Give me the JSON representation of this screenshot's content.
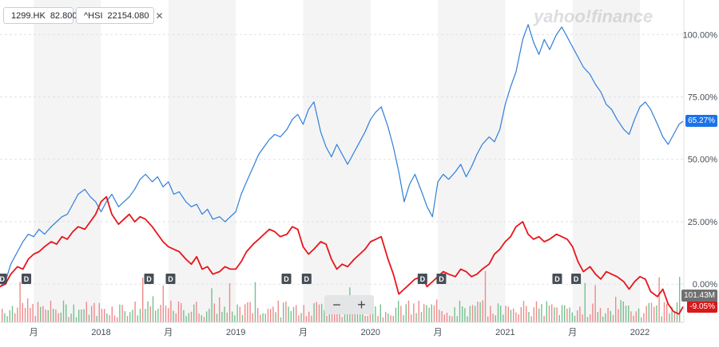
{
  "legend": {
    "items": [
      {
        "ticker": "1299.HK",
        "value": "82.800",
        "color": "#1a73e8",
        "removable": false
      },
      {
        "ticker": "^HSI",
        "value": "22154.080",
        "color": "#d7191c",
        "removable": true
      }
    ]
  },
  "brand": "yahoo!finance",
  "zoom": {
    "minus": "−",
    "plus": "+"
  },
  "chart_data": {
    "type": "line",
    "colors": {
      "series1": "#2f7ed8",
      "series2": "#e8151b",
      "vol_up": "#76c08e",
      "vol_down": "#ef8a8a",
      "band": "#f4f4f5"
    },
    "x_tick_labels": [
      "月",
      "2018",
      "月",
      "2019",
      "月",
      "2020",
      "月",
      "2021",
      "月",
      "2022"
    ],
    "x_ticks_years": [
      2017.5,
      2018.0,
      2018.5,
      2019.0,
      2019.5,
      2020.0,
      2020.5,
      2021.0,
      2021.5,
      2022.0
    ],
    "x_range": [
      2017.25,
      2022.32
    ],
    "y_ticks": [
      "100.00%",
      "75.00%",
      "50.00%",
      "25.00%",
      "0.00%"
    ],
    "y_tick_values": [
      100,
      75,
      50,
      25,
      0
    ],
    "y_range": [
      -14,
      110
    ],
    "series": [
      {
        "ticker": "1299.HK",
        "points": [
          [
            2017.25,
            -1
          ],
          [
            2017.29,
            1
          ],
          [
            2017.33,
            8
          ],
          [
            2017.38,
            13
          ],
          [
            2017.42,
            17
          ],
          [
            2017.46,
            20
          ],
          [
            2017.5,
            19
          ],
          [
            2017.54,
            22
          ],
          [
            2017.58,
            20
          ],
          [
            2017.63,
            23
          ],
          [
            2017.67,
            25
          ],
          [
            2017.71,
            27
          ],
          [
            2017.75,
            28
          ],
          [
            2017.79,
            32
          ],
          [
            2017.83,
            36
          ],
          [
            2017.88,
            38
          ],
          [
            2017.92,
            35
          ],
          [
            2017.96,
            33
          ],
          [
            2018.0,
            29
          ],
          [
            2018.04,
            33
          ],
          [
            2018.08,
            36
          ],
          [
            2018.13,
            31
          ],
          [
            2018.17,
            33
          ],
          [
            2018.21,
            35
          ],
          [
            2018.25,
            38
          ],
          [
            2018.29,
            42
          ],
          [
            2018.33,
            44
          ],
          [
            2018.38,
            41
          ],
          [
            2018.42,
            43
          ],
          [
            2018.46,
            39
          ],
          [
            2018.5,
            41
          ],
          [
            2018.54,
            36
          ],
          [
            2018.58,
            37
          ],
          [
            2018.63,
            33
          ],
          [
            2018.67,
            31
          ],
          [
            2018.71,
            32
          ],
          [
            2018.75,
            28
          ],
          [
            2018.79,
            30
          ],
          [
            2018.83,
            26
          ],
          [
            2018.88,
            27
          ],
          [
            2018.92,
            25
          ],
          [
            2018.96,
            27
          ],
          [
            2019.0,
            29
          ],
          [
            2019.04,
            36
          ],
          [
            2019.08,
            41
          ],
          [
            2019.13,
            47
          ],
          [
            2019.17,
            52
          ],
          [
            2019.21,
            55
          ],
          [
            2019.25,
            58
          ],
          [
            2019.29,
            60
          ],
          [
            2019.33,
            59
          ],
          [
            2019.38,
            62
          ],
          [
            2019.42,
            66
          ],
          [
            2019.46,
            68
          ],
          [
            2019.5,
            64
          ],
          [
            2019.54,
            70
          ],
          [
            2019.58,
            73
          ],
          [
            2019.63,
            61
          ],
          [
            2019.67,
            55
          ],
          [
            2019.71,
            51
          ],
          [
            2019.75,
            56
          ],
          [
            2019.79,
            52
          ],
          [
            2019.83,
            48
          ],
          [
            2019.88,
            53
          ],
          [
            2019.92,
            57
          ],
          [
            2019.96,
            61
          ],
          [
            2020.0,
            66
          ],
          [
            2020.04,
            69
          ],
          [
            2020.08,
            71
          ],
          [
            2020.13,
            63
          ],
          [
            2020.17,
            55
          ],
          [
            2020.21,
            45
          ],
          [
            2020.25,
            33
          ],
          [
            2020.29,
            40
          ],
          [
            2020.33,
            44
          ],
          [
            2020.38,
            37
          ],
          [
            2020.42,
            31
          ],
          [
            2020.46,
            27
          ],
          [
            2020.5,
            41
          ],
          [
            2020.54,
            44
          ],
          [
            2020.58,
            42
          ],
          [
            2020.63,
            45
          ],
          [
            2020.67,
            48
          ],
          [
            2020.71,
            43
          ],
          [
            2020.75,
            47
          ],
          [
            2020.79,
            52
          ],
          [
            2020.83,
            56
          ],
          [
            2020.88,
            59
          ],
          [
            2020.92,
            57
          ],
          [
            2020.96,
            62
          ],
          [
            2021.0,
            72
          ],
          [
            2021.04,
            79
          ],
          [
            2021.08,
            85
          ],
          [
            2021.13,
            98
          ],
          [
            2021.17,
            104
          ],
          [
            2021.21,
            97
          ],
          [
            2021.25,
            92
          ],
          [
            2021.29,
            98
          ],
          [
            2021.33,
            94
          ],
          [
            2021.38,
            100
          ],
          [
            2021.42,
            103
          ],
          [
            2021.46,
            99
          ],
          [
            2021.5,
            95
          ],
          [
            2021.54,
            91
          ],
          [
            2021.58,
            87
          ],
          [
            2021.63,
            84
          ],
          [
            2021.67,
            80
          ],
          [
            2021.71,
            77
          ],
          [
            2021.75,
            72
          ],
          [
            2021.79,
            70
          ],
          [
            2021.83,
            66
          ],
          [
            2021.88,
            62
          ],
          [
            2021.92,
            60
          ],
          [
            2021.96,
            66
          ],
          [
            2022.0,
            71
          ],
          [
            2022.04,
            73
          ],
          [
            2022.08,
            70
          ],
          [
            2022.13,
            64
          ],
          [
            2022.17,
            59
          ],
          [
            2022.21,
            56
          ],
          [
            2022.25,
            60
          ],
          [
            2022.29,
            64
          ],
          [
            2022.32,
            65.27
          ]
        ]
      },
      {
        "ticker": "^HSI",
        "points": [
          [
            2017.25,
            -1
          ],
          [
            2017.29,
            0
          ],
          [
            2017.33,
            4
          ],
          [
            2017.38,
            7
          ],
          [
            2017.42,
            6
          ],
          [
            2017.46,
            10
          ],
          [
            2017.5,
            12
          ],
          [
            2017.54,
            13
          ],
          [
            2017.58,
            15
          ],
          [
            2017.63,
            17
          ],
          [
            2017.67,
            16
          ],
          [
            2017.71,
            19
          ],
          [
            2017.75,
            18
          ],
          [
            2017.79,
            21
          ],
          [
            2017.83,
            23
          ],
          [
            2017.88,
            22
          ],
          [
            2017.92,
            25
          ],
          [
            2017.96,
            28
          ],
          [
            2018.0,
            33
          ],
          [
            2018.04,
            35
          ],
          [
            2018.08,
            28
          ],
          [
            2018.13,
            24
          ],
          [
            2018.17,
            26
          ],
          [
            2018.21,
            28
          ],
          [
            2018.25,
            25
          ],
          [
            2018.29,
            27
          ],
          [
            2018.33,
            26
          ],
          [
            2018.38,
            23
          ],
          [
            2018.42,
            20
          ],
          [
            2018.46,
            17
          ],
          [
            2018.5,
            15
          ],
          [
            2018.54,
            14
          ],
          [
            2018.58,
            13
          ],
          [
            2018.63,
            10
          ],
          [
            2018.67,
            8
          ],
          [
            2018.71,
            11
          ],
          [
            2018.75,
            6
          ],
          [
            2018.79,
            7
          ],
          [
            2018.83,
            4
          ],
          [
            2018.88,
            5
          ],
          [
            2018.92,
            7
          ],
          [
            2018.96,
            6
          ],
          [
            2019.0,
            6
          ],
          [
            2019.04,
            9
          ],
          [
            2019.08,
            13
          ],
          [
            2019.13,
            16
          ],
          [
            2019.17,
            18
          ],
          [
            2019.21,
            20
          ],
          [
            2019.25,
            22
          ],
          [
            2019.29,
            21
          ],
          [
            2019.33,
            19
          ],
          [
            2019.38,
            20
          ],
          [
            2019.42,
            23
          ],
          [
            2019.46,
            22
          ],
          [
            2019.5,
            15
          ],
          [
            2019.54,
            12
          ],
          [
            2019.58,
            14
          ],
          [
            2019.63,
            17
          ],
          [
            2019.67,
            16
          ],
          [
            2019.71,
            10
          ],
          [
            2019.75,
            6
          ],
          [
            2019.79,
            8
          ],
          [
            2019.83,
            7
          ],
          [
            2019.88,
            10
          ],
          [
            2019.92,
            12
          ],
          [
            2019.96,
            14
          ],
          [
            2020.0,
            17
          ],
          [
            2020.04,
            18
          ],
          [
            2020.08,
            19
          ],
          [
            2020.13,
            10
          ],
          [
            2020.17,
            4
          ],
          [
            2020.21,
            -4
          ],
          [
            2020.25,
            -2
          ],
          [
            2020.29,
            0
          ],
          [
            2020.33,
            2
          ],
          [
            2020.38,
            3
          ],
          [
            2020.42,
            -1
          ],
          [
            2020.46,
            1
          ],
          [
            2020.5,
            3
          ],
          [
            2020.54,
            5
          ],
          [
            2020.58,
            4
          ],
          [
            2020.63,
            3
          ],
          [
            2020.67,
            6
          ],
          [
            2020.71,
            5
          ],
          [
            2020.75,
            3
          ],
          [
            2020.79,
            4
          ],
          [
            2020.83,
            6
          ],
          [
            2020.88,
            8
          ],
          [
            2020.92,
            12
          ],
          [
            2020.96,
            14
          ],
          [
            2021.0,
            17
          ],
          [
            2021.04,
            19
          ],
          [
            2021.08,
            23
          ],
          [
            2021.13,
            25
          ],
          [
            2021.17,
            20
          ],
          [
            2021.21,
            18
          ],
          [
            2021.25,
            19
          ],
          [
            2021.29,
            17
          ],
          [
            2021.33,
            18
          ],
          [
            2021.38,
            20
          ],
          [
            2021.42,
            19
          ],
          [
            2021.46,
            18
          ],
          [
            2021.5,
            15
          ],
          [
            2021.54,
            9
          ],
          [
            2021.58,
            5
          ],
          [
            2021.63,
            7
          ],
          [
            2021.67,
            4
          ],
          [
            2021.71,
            2
          ],
          [
            2021.75,
            5
          ],
          [
            2021.79,
            4
          ],
          [
            2021.83,
            3
          ],
          [
            2021.88,
            1
          ],
          [
            2021.92,
            -2
          ],
          [
            2021.96,
            1
          ],
          [
            2022.0,
            3
          ],
          [
            2022.04,
            2
          ],
          [
            2022.08,
            -3
          ],
          [
            2022.13,
            -5
          ],
          [
            2022.17,
            -2
          ],
          [
            2022.21,
            -8
          ],
          [
            2022.25,
            -11
          ],
          [
            2022.29,
            -12
          ],
          [
            2022.32,
            -9.05
          ]
        ]
      }
    ],
    "dividend_markers": {
      "label": "D",
      "x": [
        2017.26,
        2017.44,
        2018.35,
        2018.51,
        2019.37,
        2019.52,
        2020.38,
        2020.52,
        2021.38,
        2021.52
      ]
    },
    "current_labels": [
      {
        "text": "65.27%",
        "y": 65.27,
        "color": "#1a73e8"
      },
      {
        "text": "-9.05%",
        "y": -9.05,
        "color": "#d7191c"
      },
      {
        "text": "101.43M",
        "y": -4.7,
        "color": "#707070"
      }
    ],
    "volume_note": "volume histogram bars along bottom"
  }
}
